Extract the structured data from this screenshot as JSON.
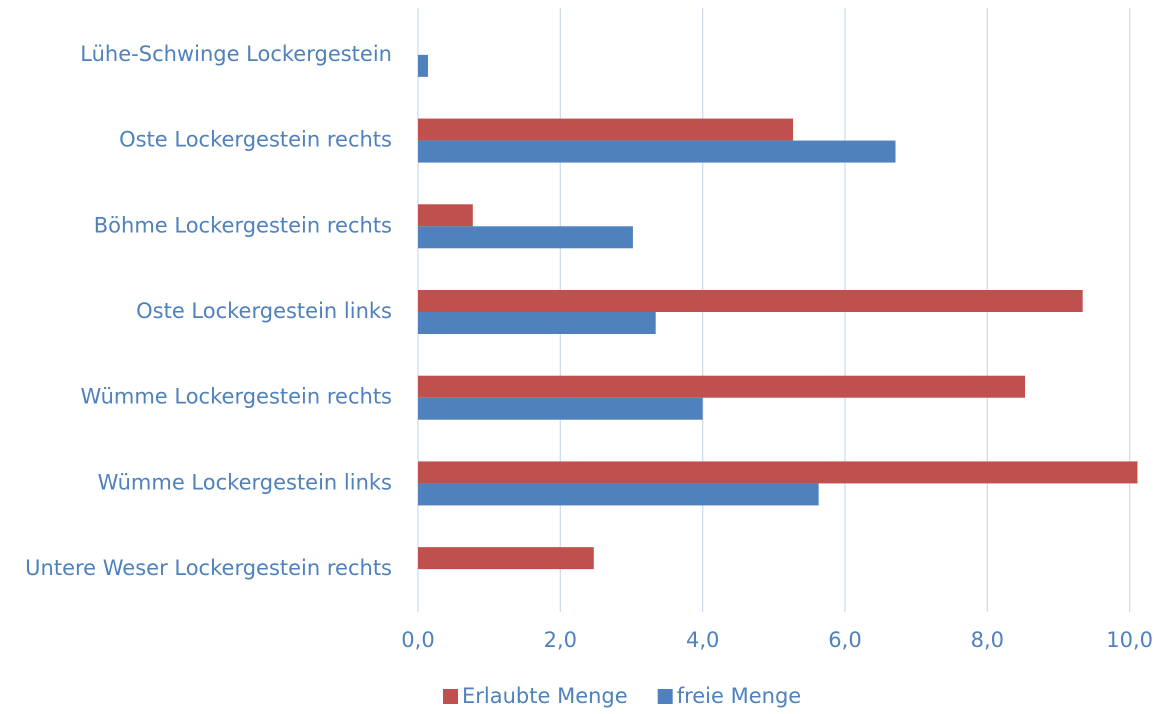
{
  "chart_data": {
    "type": "hbar",
    "categories": [
      "Lühe-Schwinge Lockergestein",
      "Oste Lockergestein rechts",
      "Böhme Lockergestein rechts",
      "Oste Lockergestein links",
      "Wümme Lockergestein rechts",
      "Wümme Lockergestein links",
      "Untere Weser Lockergestein rechts"
    ],
    "series": [
      {
        "name": "Erlaubte Menge",
        "color": "#c0504d",
        "values": [
          0,
          5.27,
          0.77,
          9.34,
          8.53,
          10.11,
          2.47
        ]
      },
      {
        "name": "freie Menge",
        "color": "#4f81bd",
        "values": [
          0.14,
          6.71,
          3.02,
          3.34,
          4.0,
          5.63,
          0
        ]
      }
    ],
    "xlim": [
      0,
      10.3
    ],
    "xticks": [
      {
        "value": 0,
        "label": "0,0"
      },
      {
        "value": 2,
        "label": "2,0"
      },
      {
        "value": 4,
        "label": "4,0"
      },
      {
        "value": 6,
        "label": "6,0"
      },
      {
        "value": 8,
        "label": "8,0"
      },
      {
        "value": 10,
        "label": "10,0"
      }
    ],
    "grid": true,
    "legend": "bottom"
  }
}
